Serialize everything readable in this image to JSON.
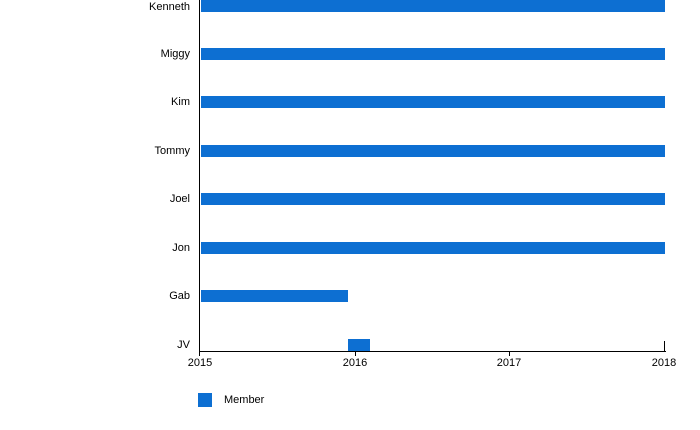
{
  "chart_data": {
    "type": "bar",
    "orientation": "horizontal",
    "categories": [
      "Kenneth",
      "Miggy",
      "Kim",
      "Tommy",
      "Joel",
      "Jon",
      "Gab",
      "JV"
    ],
    "series": [
      {
        "name": "Member",
        "color": "#0d6fd2",
        "ranges": [
          [
            2015,
            2018
          ],
          [
            2015,
            2018
          ],
          [
            2015,
            2018
          ],
          [
            2015,
            2018
          ],
          [
            2015,
            2018
          ],
          [
            2015,
            2018
          ],
          [
            2015,
            2015.95
          ],
          [
            2015.95,
            2016.09
          ]
        ]
      }
    ],
    "xlim": [
      2015,
      2018
    ],
    "x_ticks": [
      2015,
      2016,
      2017,
      2018
    ],
    "x_tick_labels": [
      "2015",
      "2016",
      "2017",
      "2018"
    ],
    "grid": false,
    "axis_color": "#000000",
    "text_color": "#000000",
    "background": "#ffffff",
    "legend": {
      "position": "bottom-left",
      "items": [
        {
          "label": "Member",
          "color": "#0d6fd2"
        }
      ]
    }
  }
}
